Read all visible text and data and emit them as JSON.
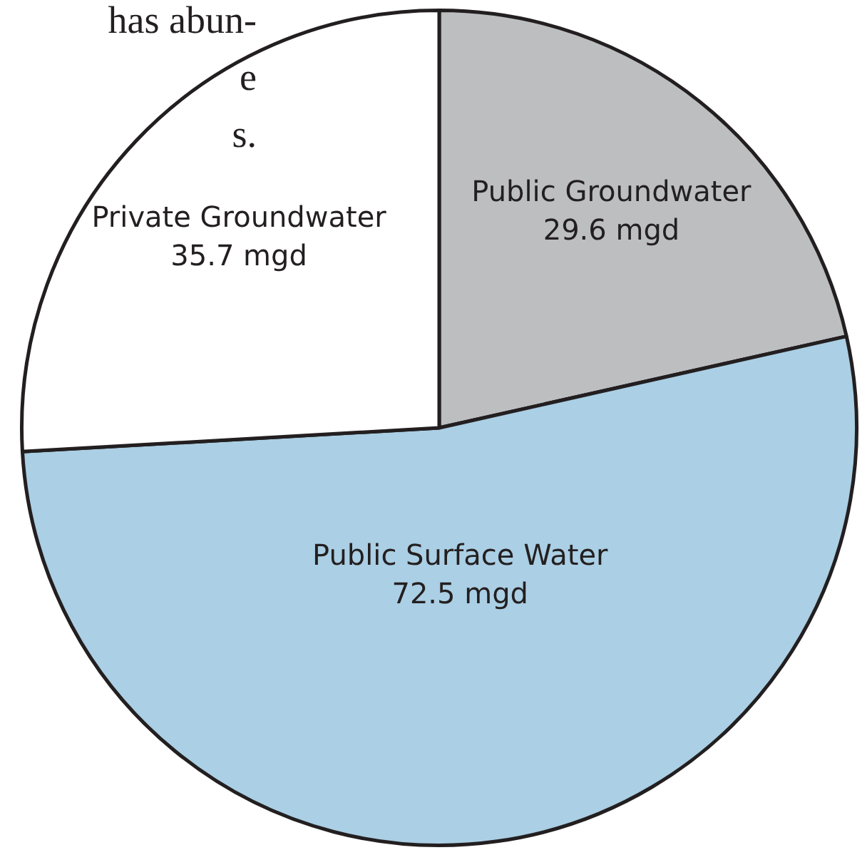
{
  "chart_data": {
    "type": "pie",
    "categories": [
      "Public Groundwater",
      "Public Surface Water",
      "Private Groundwater"
    ],
    "values": [
      29.6,
      72.5,
      35.7
    ],
    "value_labels": [
      "29.6 mgd",
      "72.5 mgd",
      "35.7 mgd"
    ],
    "colors": [
      "#bcbec0",
      "#abcfe4",
      "#ffffff"
    ],
    "annotations": [
      "has abun-",
      "e",
      "s."
    ],
    "legend": false
  }
}
